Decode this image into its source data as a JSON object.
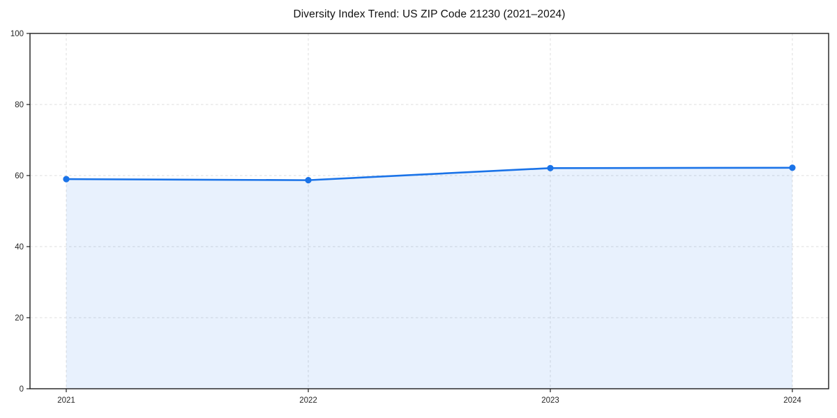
{
  "chart_data": {
    "type": "area",
    "title": "Diversity Index Trend: US ZIP Code 21230 (2021–2024)",
    "x": [
      "2021",
      "2022",
      "2023",
      "2024"
    ],
    "series": [
      {
        "name": "Diversity Index",
        "values": [
          59.0,
          58.7,
          62.1,
          62.2
        ]
      }
    ],
    "xlabel": "",
    "ylabel": "",
    "ylim": [
      0,
      100
    ],
    "yticks": [
      0,
      20,
      40,
      60,
      80,
      100
    ],
    "grid": true,
    "grid_style": "dashed",
    "legend": false,
    "marker": "circle",
    "colors": {
      "line": "#1a73e8",
      "marker": "#1a73e8",
      "fill": "rgba(26,115,232,0.10)",
      "grid": "#dcdcdc",
      "spine": "#1c1c1c",
      "text": "#262626"
    }
  }
}
